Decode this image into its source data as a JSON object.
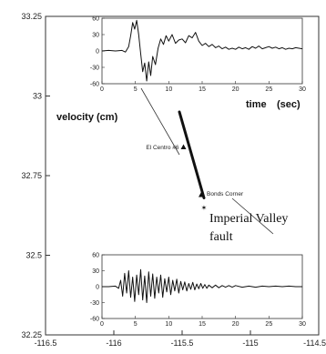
{
  "chart_data": {
    "type": "line",
    "main_map": {
      "xlim": [
        -116.5,
        -114.5
      ],
      "ylim": [
        32.25,
        33.25
      ],
      "x_ticks": [
        -116.5,
        -116,
        -115.5,
        -115,
        -114.5
      ],
      "x_tick_labels": [
        "-116.5",
        "-116",
        "-115.5",
        "-115",
        "-114.5"
      ],
      "y_ticks": [
        32.25,
        32.5,
        32.75,
        33,
        33.25
      ],
      "y_tick_labels": [
        "32.25",
        "32.5",
        "32.75",
        "33",
        "33.25"
      ],
      "fault": {
        "label": "Imperial Valley\nfault",
        "trace": [
          [
            -115.52,
            32.95
          ],
          [
            -115.34,
            32.68
          ]
        ]
      },
      "stations": [
        {
          "name": "El Centro #6",
          "lon": -115.49,
          "lat": 32.84
        },
        {
          "name": "Bonds Corner",
          "lon": -115.36,
          "lat": 32.69
        }
      ],
      "epicenter": {
        "lon": -115.34,
        "lat": 32.65
      }
    },
    "insets": [
      {
        "id": "top",
        "station": "El Centro #6",
        "xlabel": "time",
        "xlabel_unit": "(sec)",
        "ylabel": "velocity (cm)",
        "xlim": [
          0,
          30
        ],
        "ylim": [
          -60,
          60
        ],
        "x_ticks": [
          0,
          5,
          10,
          15,
          20,
          25,
          30
        ],
        "y_ticks": [
          60,
          30,
          0,
          -30,
          -60
        ],
        "x_tick_labels": [
          "0",
          "5",
          "10",
          "15",
          "20",
          "25",
          "30"
        ],
        "y_tick_labels": [
          "60",
          "30",
          "0",
          "-30",
          "-60"
        ],
        "trace": [
          [
            0,
            0
          ],
          [
            1,
            1
          ],
          [
            2,
            0
          ],
          [
            3,
            1
          ],
          [
            3.5,
            -2
          ],
          [
            4,
            8
          ],
          [
            4.3,
            28
          ],
          [
            4.6,
            52
          ],
          [
            4.9,
            40
          ],
          [
            5.2,
            56
          ],
          [
            5.5,
            30
          ],
          [
            5.8,
            -5
          ],
          [
            6.1,
            -38
          ],
          [
            6.4,
            -22
          ],
          [
            6.7,
            -55
          ],
          [
            7,
            -20
          ],
          [
            7.3,
            -45
          ],
          [
            7.6,
            -10
          ],
          [
            8,
            -25
          ],
          [
            8.4,
            5
          ],
          [
            8.8,
            22
          ],
          [
            9.2,
            12
          ],
          [
            9.6,
            28
          ],
          [
            10,
            18
          ],
          [
            10.5,
            30
          ],
          [
            11,
            14
          ],
          [
            11.5,
            20
          ],
          [
            12,
            22
          ],
          [
            12.5,
            15
          ],
          [
            13,
            28
          ],
          [
            13.5,
            24
          ],
          [
            14,
            34
          ],
          [
            14.5,
            18
          ],
          [
            15,
            10
          ],
          [
            15.5,
            14
          ],
          [
            16,
            8
          ],
          [
            16.5,
            12
          ],
          [
            17,
            6
          ],
          [
            17.5,
            9
          ],
          [
            18,
            4
          ],
          [
            18.5,
            7
          ],
          [
            19,
            3
          ],
          [
            19.5,
            5
          ],
          [
            20,
            3
          ],
          [
            20.5,
            7
          ],
          [
            21,
            4
          ],
          [
            21.5,
            6
          ],
          [
            22,
            3
          ],
          [
            22.5,
            8
          ],
          [
            23,
            5
          ],
          [
            23.5,
            9
          ],
          [
            24,
            4
          ],
          [
            24.5,
            6
          ],
          [
            25,
            8
          ],
          [
            25.5,
            5
          ],
          [
            26,
            7
          ],
          [
            26.5,
            4
          ],
          [
            27,
            6
          ],
          [
            27.5,
            3
          ],
          [
            28,
            5
          ],
          [
            28.5,
            4
          ],
          [
            29,
            6
          ],
          [
            29.5,
            5
          ],
          [
            30,
            4
          ]
        ]
      },
      {
        "id": "bottom",
        "station": "Bonds Corner",
        "xlim": [
          0,
          30
        ],
        "ylim": [
          -60,
          60
        ],
        "x_ticks": [
          0,
          5,
          10,
          15,
          20,
          25,
          30
        ],
        "y_ticks": [
          60,
          30,
          0,
          -30,
          -60
        ],
        "x_tick_labels": [
          "0",
          "5",
          "10",
          "15",
          "20",
          "25",
          "30"
        ],
        "y_tick_labels": [
          "60",
          "30",
          "0",
          "-30",
          "-60"
        ],
        "trace": [
          [
            0,
            0
          ],
          [
            1,
            0
          ],
          [
            2,
            1
          ],
          [
            2.5,
            -3
          ],
          [
            2.8,
            12
          ],
          [
            3.1,
            -18
          ],
          [
            3.4,
            25
          ],
          [
            3.7,
            -12
          ],
          [
            4,
            30
          ],
          [
            4.3,
            -20
          ],
          [
            4.6,
            18
          ],
          [
            4.9,
            -28
          ],
          [
            5.2,
            22
          ],
          [
            5.5,
            -15
          ],
          [
            5.8,
            32
          ],
          [
            6.1,
            -25
          ],
          [
            6.4,
            20
          ],
          [
            6.7,
            -30
          ],
          [
            7,
            28
          ],
          [
            7.3,
            -18
          ],
          [
            7.6,
            24
          ],
          [
            7.9,
            -22
          ],
          [
            8.2,
            18
          ],
          [
            8.5,
            -12
          ],
          [
            8.8,
            22
          ],
          [
            9.1,
            -20
          ],
          [
            9.4,
            15
          ],
          [
            9.7,
            -10
          ],
          [
            10,
            18
          ],
          [
            10.3,
            -15
          ],
          [
            10.6,
            12
          ],
          [
            10.9,
            -8
          ],
          [
            11.2,
            14
          ],
          [
            11.5,
            -12
          ],
          [
            11.8,
            10
          ],
          [
            12.1,
            -6
          ],
          [
            12.4,
            9
          ],
          [
            12.7,
            -8
          ],
          [
            13,
            6
          ],
          [
            13.3,
            -5
          ],
          [
            13.6,
            8
          ],
          [
            13.9,
            -6
          ],
          [
            14.2,
            5
          ],
          [
            14.5,
            -4
          ],
          [
            14.8,
            6
          ],
          [
            15.1,
            -3
          ],
          [
            15.4,
            4
          ],
          [
            15.7,
            -3
          ],
          [
            16,
            3
          ],
          [
            16.5,
            -2
          ],
          [
            17,
            3
          ],
          [
            17.5,
            -2
          ],
          [
            18,
            2
          ],
          [
            18.5,
            -1
          ],
          [
            19,
            2
          ],
          [
            19.5,
            -1
          ],
          [
            20,
            2
          ],
          [
            21,
            -1
          ],
          [
            22,
            1
          ],
          [
            23,
            -1
          ],
          [
            24,
            1
          ],
          [
            25,
            0
          ],
          [
            26,
            1
          ],
          [
            27,
            0
          ],
          [
            28,
            1
          ],
          [
            29,
            0
          ],
          [
            30,
            0
          ]
        ]
      }
    ]
  }
}
